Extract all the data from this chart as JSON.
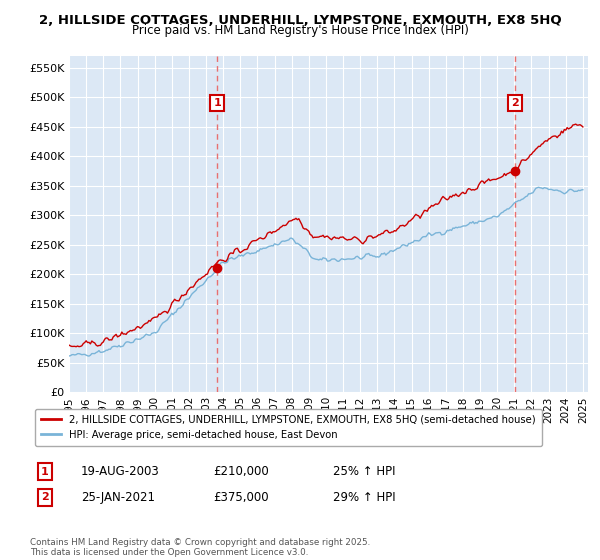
{
  "title": "2, HILLSIDE COTTAGES, UNDERHILL, LYMPSTONE, EXMOUTH, EX8 5HQ",
  "subtitle": "Price paid vs. HM Land Registry's House Price Index (HPI)",
  "ylabel_ticks": [
    "£0",
    "£50K",
    "£100K",
    "£150K",
    "£200K",
    "£250K",
    "£300K",
    "£350K",
    "£400K",
    "£450K",
    "£500K",
    "£550K"
  ],
  "ytick_values": [
    0,
    50000,
    100000,
    150000,
    200000,
    250000,
    300000,
    350000,
    400000,
    450000,
    500000,
    550000
  ],
  "x_start_year": 1995,
  "x_end_year": 2025,
  "sale1_date": "19-AUG-2003",
  "sale1_price": 210000,
  "sale1_hpi": "25% ↑ HPI",
  "sale1_x": 2003.65,
  "sale2_date": "25-JAN-2021",
  "sale2_price": 375000,
  "sale2_hpi": "29% ↑ HPI",
  "sale2_x": 2021.05,
  "hpi_line_color": "#7ab4d8",
  "price_line_color": "#cc0000",
  "vline_color": "#e87070",
  "plot_bg_color": "#dce8f5",
  "legend_label_red": "2, HILLSIDE COTTAGES, UNDERHILL, LYMPSTONE, EXMOUTH, EX8 5HQ (semi-detached house)",
  "legend_label_blue": "HPI: Average price, semi-detached house, East Devon",
  "footer": "Contains HM Land Registry data © Crown copyright and database right 2025.\nThis data is licensed under the Open Government Licence v3.0."
}
